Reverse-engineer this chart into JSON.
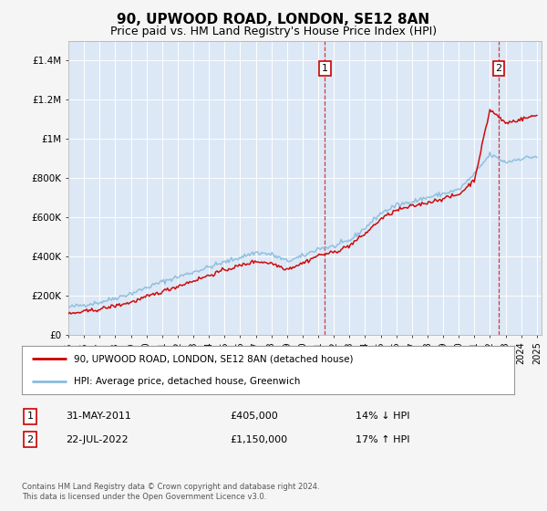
{
  "title": "90, UPWOOD ROAD, LONDON, SE12 8AN",
  "subtitle": "Price paid vs. HM Land Registry's House Price Index (HPI)",
  "title_fontsize": 11,
  "subtitle_fontsize": 9,
  "fig_bg_color": "#f5f5f5",
  "plot_bg_color": "#dce8f5",
  "grid_color": "#ffffff",
  "ylabel_ticks": [
    "£0",
    "£200K",
    "£400K",
    "£600K",
    "£800K",
    "£1M",
    "£1.2M",
    "£1.4M"
  ],
  "ylabel_values": [
    0,
    200000,
    400000,
    600000,
    800000,
    1000000,
    1200000,
    1400000
  ],
  "ylim": [
    0,
    1500000
  ],
  "xlim_start": 1995.3,
  "xlim_end": 2025.3,
  "hpi_color": "#88bbdd",
  "price_color": "#cc0000",
  "marker1_year": 2011.42,
  "marker1_value": 405000,
  "marker1_label": "1",
  "marker2_year": 2022.55,
  "marker2_value": 1150000,
  "marker2_label": "2",
  "legend_line1": "90, UPWOOD ROAD, LONDON, SE12 8AN (detached house)",
  "legend_line2": "HPI: Average price, detached house, Greenwich",
  "table_row1_num": "1",
  "table_row1_date": "31-MAY-2011",
  "table_row1_price": "£405,000",
  "table_row1_hpi": "14% ↓ HPI",
  "table_row2_num": "2",
  "table_row2_date": "22-JUL-2022",
  "table_row2_price": "£1,150,000",
  "table_row2_hpi": "17% ↑ HPI",
  "footnote": "Contains HM Land Registry data © Crown copyright and database right 2024.\nThis data is licensed under the Open Government Licence v3.0.",
  "xticks": [
    1995,
    1996,
    1997,
    1998,
    1999,
    2000,
    2001,
    2002,
    2003,
    2004,
    2005,
    2006,
    2007,
    2008,
    2009,
    2010,
    2011,
    2012,
    2013,
    2014,
    2015,
    2016,
    2017,
    2018,
    2019,
    2020,
    2021,
    2022,
    2023,
    2024,
    2025
  ]
}
